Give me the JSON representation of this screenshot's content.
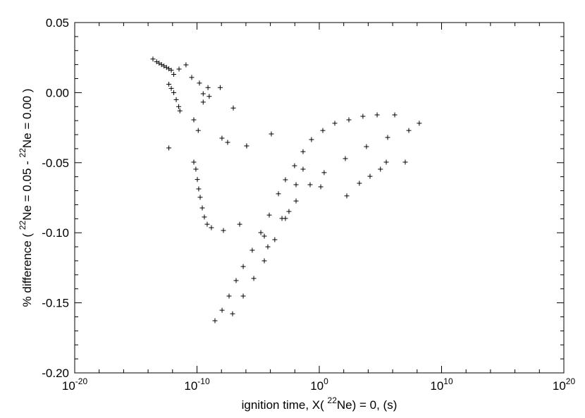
{
  "chart_data": {
    "type": "scatter",
    "xlabel_parts": [
      {
        "text": "ignition time, X( "
      },
      {
        "text": "22",
        "sup": true
      },
      {
        "text": "Ne) = 0, (s)"
      }
    ],
    "ylabel_parts": [
      {
        "text": "% difference ( "
      },
      {
        "text": "22",
        "sup": true
      },
      {
        "text": "Ne = 0.05 - "
      },
      {
        "text": "22",
        "sup": true
      },
      {
        "text": "Ne = 0.00 )"
      }
    ],
    "xscale": "log",
    "xlim": [
      1e-20,
      1e+20
    ],
    "xticks": [
      {
        "value": 1e-20,
        "label": "10",
        "exponent": "-20"
      },
      {
        "value": 1e-10,
        "label": "10",
        "exponent": "-10"
      },
      {
        "value": 1,
        "label": "10",
        "exponent": "0"
      },
      {
        "value": 10000000000.0,
        "label": "10",
        "exponent": "10"
      },
      {
        "value": 1e+20,
        "label": "10",
        "exponent": "20"
      }
    ],
    "xminorticks": [
      1e-18,
      1e-16,
      1e-14,
      1e-12,
      1e-08,
      1e-06,
      0.0001,
      0.01,
      100.0,
      10000.0,
      1000000.0,
      100000000.0,
      1000000000000.0,
      100000000000000.0,
      1e+16,
      1e+18
    ],
    "ylim": [
      -0.2,
      0.05
    ],
    "yticks": [
      {
        "value": 0.05,
        "label": "0.05"
      },
      {
        "value": 0,
        "label": "0.00"
      },
      {
        "value": -0.05,
        "label": "-0.05"
      },
      {
        "value": -0.1,
        "label": "-0.10"
      },
      {
        "value": -0.15,
        "label": "-0.15"
      },
      {
        "value": -0.2,
        "label": "-0.20"
      }
    ],
    "yminorticks": [
      0.04,
      0.03,
      0.02,
      0.01,
      -0.01,
      -0.02,
      -0.03,
      -0.04,
      -0.06,
      -0.07,
      -0.08,
      -0.09,
      -0.11,
      -0.12,
      -0.13,
      -0.14,
      -0.16,
      -0.17,
      -0.18,
      -0.19
    ],
    "marker": "+",
    "color": "#000000",
    "x": [
      2.5e-14,
      5e-14,
      7.9e-14,
      1.26e-13,
      2e-13,
      3.2e-13,
      5e-13,
      7.9e-13,
      1.26e-12,
      3.4e-12,
      1.26e-11,
      3.7e-11,
      1.58e-10,
      3.2e-10,
      7.9e-10,
      1e-09,
      3.2e-10,
      7.9e-09,
      9.3e-08,
      1.15e-06,
      3.2e-08,
      1.1e-08,
      1.26e-10,
      5.5e-11,
      5e-13,
      5e-13,
      7.9e-13,
      1.26e-12,
      2e-12,
      3.2e-12,
      4e-12,
      5.5e-11,
      8.1e-11,
      1.07e-10,
      1.38e-10,
      1.82e-10,
      2.7e-10,
      4e-10,
      6.8e-10,
      1.5e-09,
      1.45e-08,
      3.1e-07,
      2.95e-09,
      1.12e-08,
      4.2e-08,
      1.58e-07,
      6e-07,
      3.3e-06,
      1.66e-05,
      8.1e-05,
      0.000457,
      0.0017,
      0.0095,
      0.047,
      0.23,
      1.95,
      18.6,
      263,
      3700,
      53700,
      1480000.0,
      8.1e-08,
      6e-07,
      4.4e-06,
      3.2e-05,
      0.00023,
      0.0017,
      0.0126,
      0.178,
      2.5,
      135,
      7200,
      390000.0,
      21000000.0,
      150000000.0,
      178,
      1900,
      14100,
      100000.0,
      300000.0,
      10700000.0,
      1.32,
      0.047,
      0.0126,
      0.00089,
      0.0033,
      3.2e-05,
      6.2e-05,
      0.00012,
      1.15e-06
    ],
    "values": [
      0.024,
      0.022,
      0.021,
      0.02,
      0.019,
      0.018,
      0.017,
      0.016,
      0.013,
      0.0168,
      0.0198,
      0.0108,
      0.0068,
      -0.0008,
      0.0036,
      -0.0027,
      -0.0068,
      0.0036,
      -0.011,
      -0.038,
      -0.0355,
      -0.0325,
      -0.027,
      -0.0194,
      -0.0395,
      0.006,
      0.003,
      0,
      -0.005,
      -0.01,
      -0.013,
      -0.0496,
      -0.0546,
      -0.062,
      -0.0687,
      -0.0747,
      -0.0823,
      -0.0888,
      -0.0939,
      -0.0964,
      -0.0984,
      -0.0939,
      -0.1628,
      -0.1553,
      -0.1452,
      -0.1341,
      -0.1241,
      -0.1125,
      -0.0999,
      -0.0874,
      -0.0722,
      -0.0622,
      -0.0522,
      -0.0421,
      -0.0335,
      -0.027,
      -0.0219,
      -0.0194,
      -0.0169,
      -0.0159,
      -0.0159,
      -0.1578,
      -0.1452,
      -0.1326,
      -0.12,
      -0.1049,
      -0.0898,
      -0.0773,
      -0.0657,
      -0.0571,
      -0.0471,
      -0.0385,
      -0.032,
      -0.027,
      -0.0219,
      -0.0737,
      -0.0647,
      -0.0597,
      -0.0546,
      -0.0496,
      -0.0496,
      -0.0672,
      -0.0546,
      -0.0657,
      -0.0898,
      -0.0848,
      -0.1024,
      -0.11,
      -0.0295,
      -0.038
    ]
  }
}
